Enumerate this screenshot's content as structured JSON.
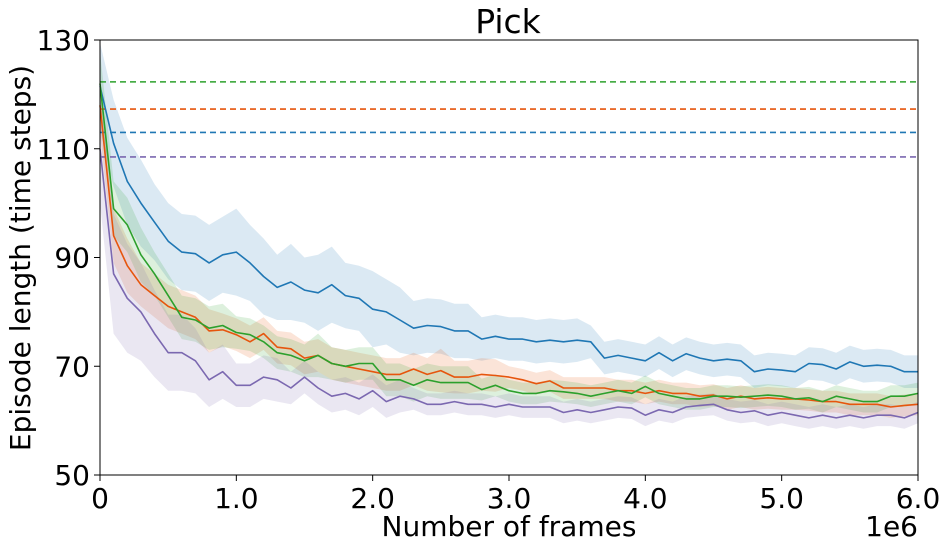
{
  "chart_data": {
    "type": "line",
    "title": "Pick",
    "xlabel": "Number of frames",
    "ylabel": "Episode length (time steps)",
    "x_offset_label": "1e6",
    "xlim": [
      0,
      6.0
    ],
    "ylim": [
      50,
      130
    ],
    "xticks": [
      0,
      1.0,
      2.0,
      3.0,
      4.0,
      5.0,
      6.0
    ],
    "xtick_labels": [
      "0",
      "1.0",
      "2.0",
      "3.0",
      "4.0",
      "5.0",
      "6.0"
    ],
    "yticks": [
      50,
      70,
      90,
      110,
      130
    ],
    "ytick_labels": [
      "50",
      "70",
      "90",
      "110",
      "130"
    ],
    "grid": false,
    "legend": "none",
    "x": [
      0,
      0.1,
      0.2,
      0.3,
      0.4,
      0.5,
      0.6,
      0.7,
      0.8,
      0.9,
      1.0,
      1.1,
      1.2,
      1.3,
      1.4,
      1.5,
      1.6,
      1.7,
      1.8,
      1.9,
      2.0,
      2.1,
      2.2,
      2.3,
      2.4,
      2.5,
      2.6,
      2.7,
      2.8,
      2.9,
      3.0,
      3.1,
      3.2,
      3.3,
      3.4,
      3.5,
      3.6,
      3.7,
      3.8,
      3.9,
      4.0,
      4.1,
      4.2,
      4.3,
      4.4,
      4.5,
      4.6,
      4.7,
      4.8,
      4.9,
      5.0,
      5.1,
      5.2,
      5.3,
      5.4,
      5.5,
      5.6,
      5.7,
      5.8,
      5.9,
      6.0
    ],
    "series": [
      {
        "color": "#1f77b4",
        "baseline": 113.0,
        "values": [
          121.5,
          111,
          104,
          100,
          96.5,
          93,
          91,
          90.7,
          89,
          90.5,
          91,
          89,
          86.5,
          84.5,
          85.5,
          84,
          83.5,
          85,
          83,
          82.5,
          80.5,
          80,
          78.5,
          77,
          77.5,
          77.3,
          76.5,
          76.5,
          75,
          75.5,
          75,
          75,
          74.5,
          74.8,
          74.5,
          74.8,
          74.5,
          71.5,
          72,
          71.5,
          71,
          72.5,
          71,
          72.3,
          71.5,
          71,
          71.3,
          71,
          69,
          69.5,
          69.3,
          69,
          70.5,
          70.3,
          69.5,
          70.8,
          70,
          70.2,
          70,
          69,
          69
        ],
        "band": [
          8,
          8,
          8,
          8,
          7,
          7,
          7,
          7,
          7,
          7,
          8,
          7,
          7,
          6,
          7,
          6,
          7,
          7,
          6,
          6,
          7,
          6,
          6,
          5,
          5,
          5,
          5,
          5,
          4,
          4,
          4,
          4,
          4,
          4,
          4,
          4,
          3,
          3,
          3,
          3,
          3,
          3,
          3,
          3,
          3,
          3,
          3,
          3,
          3,
          3,
          3,
          3,
          3,
          3,
          3,
          3,
          3,
          3,
          3,
          3,
          3
        ]
      },
      {
        "color": "#e6550d",
        "baseline": 117.3,
        "values": [
          118,
          94,
          88.5,
          85,
          83,
          81,
          80,
          79,
          76.5,
          76.7,
          75.8,
          74.5,
          76,
          73.5,
          73.2,
          71.5,
          72,
          70.5,
          70,
          69.5,
          69,
          68.5,
          68.5,
          69.5,
          68.5,
          69.2,
          68,
          68,
          68.5,
          68.3,
          68,
          67.5,
          66.8,
          67.3,
          66,
          66,
          66,
          66,
          65.5,
          65.5,
          65,
          65.5,
          65,
          65,
          64.5,
          64.7,
          64,
          64.5,
          64,
          64.2,
          64,
          64,
          63.8,
          63.5,
          63.5,
          63,
          63,
          63,
          62.5,
          62.8,
          63
        ],
        "band": [
          5,
          5,
          5,
          4,
          4,
          4,
          4,
          4,
          4,
          3,
          3,
          3,
          3,
          3,
          3,
          3,
          3,
          3,
          3,
          3,
          3,
          3,
          3,
          3,
          3,
          4,
          3,
          3,
          3,
          3,
          2,
          2,
          2,
          2,
          2,
          2,
          2,
          2,
          2,
          2,
          2,
          2,
          2,
          2,
          2,
          2,
          2,
          2,
          2,
          2,
          2,
          2,
          2,
          2,
          2,
          2,
          2,
          2,
          2,
          2,
          2
        ]
      },
      {
        "color": "#2ca02c",
        "baseline": 122.3,
        "values": [
          122,
          99,
          96,
          90.5,
          87,
          83,
          79,
          78.5,
          77,
          77.5,
          76.2,
          75.8,
          74.5,
          72.5,
          72,
          71,
          72,
          70.5,
          70,
          70.5,
          70.5,
          67.5,
          67.5,
          66.5,
          67.5,
          67,
          67,
          67,
          65.7,
          66.5,
          65.5,
          65,
          65,
          65.5,
          65.3,
          65,
          64.5,
          65,
          65.5,
          65,
          66.3,
          65,
          64.5,
          64,
          64,
          64.5,
          64.5,
          64.3,
          64.5,
          64.7,
          64.5,
          64,
          64.2,
          63.5,
          64.5,
          64,
          63.5,
          63.5,
          64.5,
          64.5,
          65
        ],
        "band": [
          6,
          5,
          5,
          5,
          4,
          4,
          4,
          4,
          4,
          4,
          3,
          3,
          3,
          3,
          3,
          3,
          4,
          3,
          3,
          3,
          3,
          3,
          3,
          3,
          3,
          3,
          3,
          3,
          2,
          2,
          2,
          2,
          2,
          2,
          2,
          2,
          2,
          2,
          2,
          2,
          2,
          2,
          2,
          2,
          2,
          2,
          2,
          2,
          2,
          2,
          2,
          2,
          2,
          2,
          2,
          2,
          2,
          2,
          2,
          2,
          2
        ]
      },
      {
        "color": "#7b68b0",
        "baseline": 108.5,
        "values": [
          110,
          87,
          82.5,
          80,
          76,
          72.5,
          72.5,
          71,
          67.5,
          69,
          66.5,
          66.5,
          68,
          67.5,
          66,
          68,
          66,
          64.5,
          65,
          64,
          65.5,
          63.5,
          64.5,
          64,
          63,
          63,
          63.5,
          63,
          63,
          62.5,
          63,
          62.5,
          62.5,
          62.5,
          61.5,
          62,
          61.5,
          62,
          62.5,
          62.3,
          61,
          62,
          61.5,
          62.5,
          62.8,
          63,
          62,
          61.5,
          61.8,
          61,
          61.5,
          61,
          60.5,
          61,
          60.5,
          61,
          60.5,
          61,
          61,
          60.5,
          61.5
        ],
        "band": [
          10,
          11,
          10,
          9,
          8,
          7,
          7,
          6,
          5,
          5,
          4,
          4,
          4,
          4,
          3,
          3,
          3,
          3,
          3,
          3,
          3,
          3,
          3,
          2,
          2,
          2,
          2,
          2,
          2,
          2,
          2,
          2,
          2,
          2,
          2,
          2,
          2,
          2,
          2,
          2,
          2,
          2,
          2,
          2,
          2,
          2,
          2,
          2,
          2,
          2,
          2,
          2,
          2,
          2,
          2,
          2,
          2,
          2,
          2,
          2,
          2
        ]
      }
    ]
  }
}
